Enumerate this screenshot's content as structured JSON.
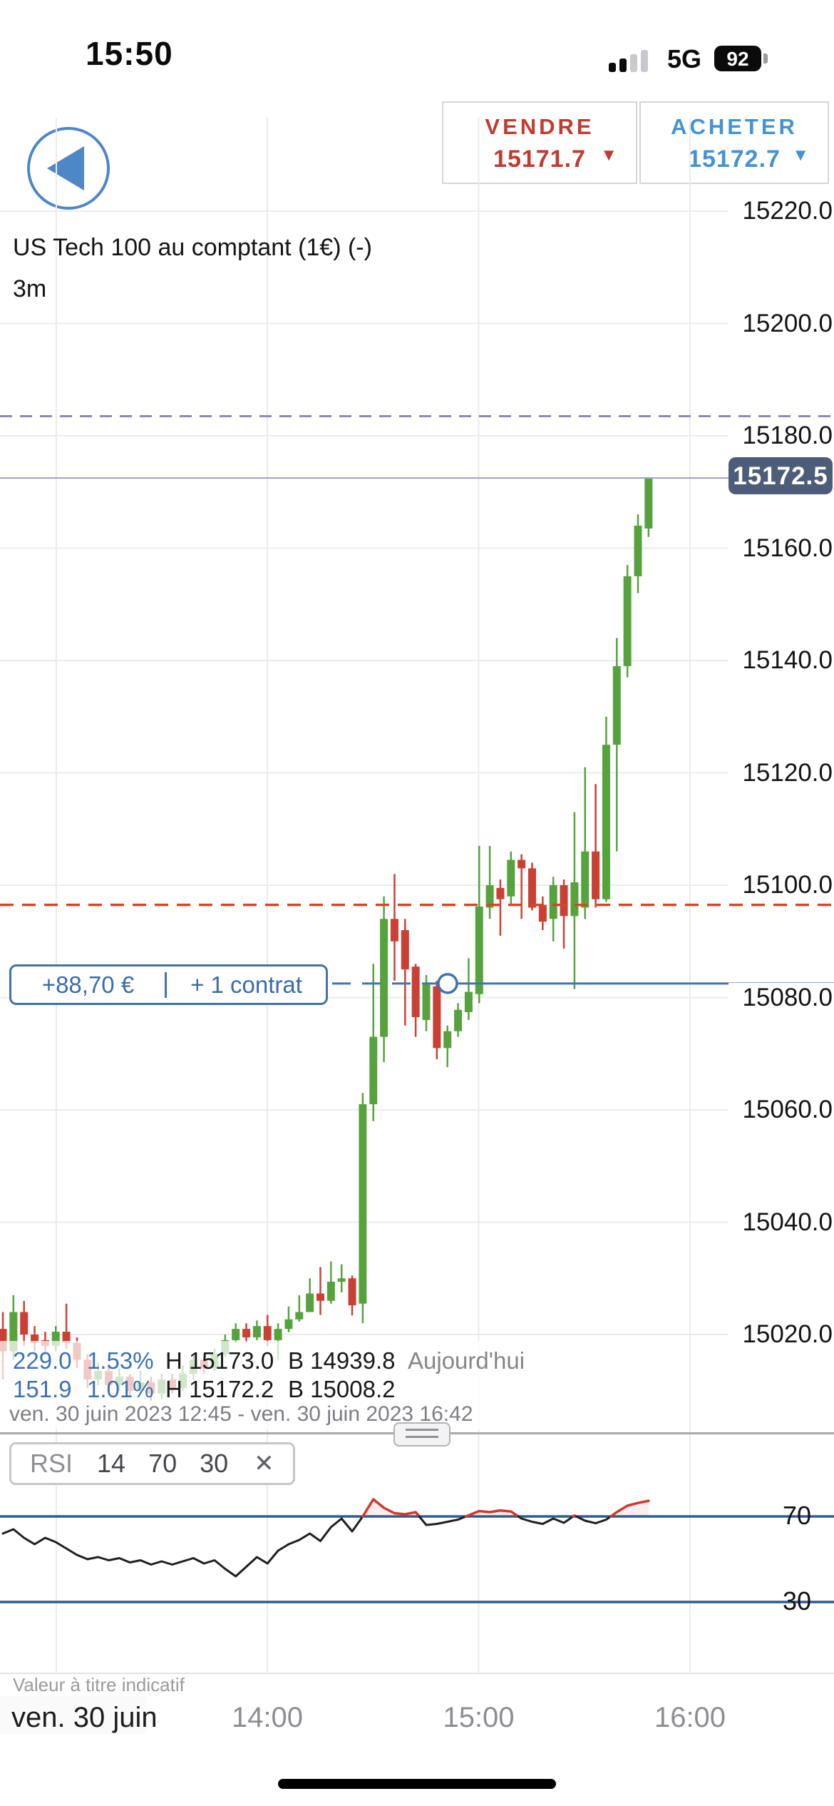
{
  "status_bar": {
    "time": "15:50",
    "network": "5G",
    "battery": "92"
  },
  "header": {
    "sell": {
      "label": "VENDRE",
      "price": "15171.7",
      "caret": "▼"
    },
    "buy": {
      "label": "ACHETER",
      "price": "15172.7",
      "caret": "▼"
    }
  },
  "chart": {
    "title": "US Tech 100 au comptant (1€) (-)",
    "timeframe": "3m",
    "price_tag": "15172.5",
    "position_pill": {
      "pnl": "+88,70 €",
      "separator": "|",
      "contracts": "+ 1 contrat"
    },
    "stats": {
      "row1": {
        "change": "229.0",
        "change_pct": "1.53%",
        "high": "H 15173.0",
        "low": "B 14939.8",
        "session": "Aujourd'hui"
      },
      "row2": {
        "change": "151.9",
        "change_pct": "1.01%",
        "high": "H 15172.2",
        "low": "B 15008.2"
      },
      "range": "ven. 30 juin 2023 12:45 - ven. 30 juin 2023 16:42"
    },
    "disclaimer": "Valeur à titre indicatif",
    "x_axis": {
      "day_label": "ven. 30 juin",
      "time_labels": [
        "14:00",
        "15:00",
        "16:00"
      ]
    },
    "y_axis_labels": [
      "15220.0",
      "15200.0",
      "15180.0",
      "15160.0",
      "15140.0",
      "15120.0",
      "15100.0",
      "15080.0",
      "15060.0",
      "15040.0",
      "15020.0"
    ]
  },
  "rsi_panel": {
    "badge": {
      "name": "RSI",
      "period": "14",
      "upper": "70",
      "lower": "30",
      "close_icon": "✕"
    },
    "upper_label": "70",
    "lower_label": "30"
  },
  "colors": {
    "candle_up": "#56a33e",
    "candle_down": "#cb4034",
    "gridline": "#ebebee",
    "resistance_dashed": "#8a88bd",
    "last_price_line": "#96a7bb",
    "last_price_tag_bg": "#4d5c78",
    "alert_dashed": "#d04a2a",
    "position_blue": "#3e74b0",
    "rsi_band": "#2d5c8f",
    "rsi_line": "#1f1f23",
    "rsi_overbought_line": "#d2382c",
    "sell_red": "#c23a30",
    "buy_blue": "#4493d3"
  },
  "chart_data": {
    "type": "candlestick+rsi",
    "instrument": "US Tech 100 au comptant (1€)",
    "interval": "3m",
    "visible_range": "ven. 30 juin 2023 12:45 - ven. 30 juin 2023 16:42",
    "first_candle_time": "12:45",
    "price_axis": {
      "min": 15008,
      "max": 15223,
      "gridline_step": 20,
      "gridlines": [
        15220,
        15200,
        15180,
        15160,
        15140,
        15120,
        15100,
        15080,
        15060,
        15040,
        15020
      ]
    },
    "levels": {
      "resistance_dashed": 15183.5,
      "last_price": 15172.5,
      "alert_dashed": 15096.5,
      "position_entry": 15082.5
    },
    "session": {
      "day_high": 15173.0,
      "day_low": 14939.8,
      "visible_high": 15172.2,
      "visible_low": 15008.2,
      "change_points": 229.0,
      "change_pct": 1.53
    },
    "candles": [
      [
        15021,
        15024,
        15012,
        15017
      ],
      [
        15017,
        15027,
        15015.5,
        15024
      ],
      [
        15024,
        15026,
        15018,
        15020
      ],
      [
        15020,
        15021.5,
        15017,
        15018.5
      ],
      [
        15019,
        15020.5,
        15016.5,
        15018
      ],
      [
        15018,
        15021.5,
        15017,
        15020.5
      ],
      [
        15020.5,
        15025.5,
        15017.5,
        15018.5
      ],
      [
        15018.5,
        15019.5,
        15014,
        15015.5
      ],
      [
        15015.5,
        15016.5,
        15010.5,
        15012
      ],
      [
        15012,
        15015,
        15011,
        15013.5
      ],
      [
        15013.5,
        15014.5,
        15010,
        15011
      ],
      [
        15011,
        15014,
        15010,
        15012.5
      ],
      [
        15012.5,
        15013,
        15009,
        15010
      ],
      [
        15010,
        15013.5,
        15009.5,
        15011.5
      ],
      [
        15011.5,
        15012.5,
        15008.2,
        15009.5
      ],
      [
        15009.5,
        15013,
        15008.5,
        15012
      ],
      [
        15012,
        15013,
        15009.5,
        15010.5
      ],
      [
        15010.5,
        15014.5,
        15010,
        15013
      ],
      [
        15013,
        15016.5,
        15012,
        15015.5
      ],
      [
        15015.5,
        15016.5,
        15013,
        15014
      ],
      [
        15014,
        15017.5,
        15013.5,
        15016.5
      ],
      [
        15016.5,
        15020,
        15016,
        15019
      ],
      [
        15019,
        15022,
        15018.5,
        15021
      ],
      [
        15021,
        15022,
        15018.5,
        15019.5
      ],
      [
        15019.5,
        15022.5,
        15019,
        15021.5
      ],
      [
        15021.5,
        15023.5,
        15018,
        15019
      ],
      [
        15019,
        15022,
        15015.5,
        15021
      ],
      [
        15021,
        15025,
        15020.4,
        15022.7
      ],
      [
        15022.7,
        15027,
        15022.3,
        15024
      ],
      [
        15024,
        15030,
        15024,
        15027.3
      ],
      [
        15027.3,
        15032,
        15023.5,
        15026
      ],
      [
        15026,
        15033,
        15025.5,
        15029.4
      ],
      [
        15029.4,
        15032.5,
        15027.5,
        15030
      ],
      [
        15030,
        15030.5,
        15023.4,
        15025.2
      ],
      [
        15025.5,
        15063,
        15022,
        15061
      ],
      [
        15061,
        15086,
        15058,
        15073
      ],
      [
        15073,
        15098,
        15068.5,
        15094
      ],
      [
        15094,
        15102,
        15083,
        15090
      ],
      [
        15092,
        15094,
        15075,
        15085
      ],
      [
        15085.5,
        15086,
        15073,
        15076.5
      ],
      [
        15076,
        15084,
        15074,
        15082.3
      ],
      [
        15082,
        15083,
        15069,
        15071
      ],
      [
        15071,
        15075,
        15067.6,
        15074
      ],
      [
        15074,
        15079,
        15073,
        15077.8
      ],
      [
        15077.4,
        15087,
        15076,
        15081
      ],
      [
        15080.6,
        15107,
        15079,
        15096.2
      ],
      [
        15096,
        15107,
        15094,
        15100
      ],
      [
        15099.5,
        15101,
        15091,
        15097.5
      ],
      [
        15098,
        15106,
        15096.5,
        15104.5
      ],
      [
        15104.5,
        15105.5,
        15094,
        15103
      ],
      [
        15103,
        15104,
        15095.5,
        15096
      ],
      [
        15096.5,
        15098,
        15092,
        15093.5
      ],
      [
        15094,
        15101.5,
        15090,
        15100
      ],
      [
        15100,
        15101,
        15088.7,
        15094.5
      ],
      [
        15094.5,
        15113,
        15081.5,
        15100.5
      ],
      [
        15096,
        15121,
        15094,
        15106
      ],
      [
        15106,
        15118,
        15096,
        15097.5
      ],
      [
        15097.5,
        15130,
        15097,
        15125
      ],
      [
        15125,
        15144,
        15106,
        15139
      ],
      [
        15139,
        15157,
        15137,
        15155
      ],
      [
        15155,
        15166,
        15152,
        15164
      ],
      [
        15163.5,
        15172.5,
        15162,
        15172.5
      ]
    ],
    "rsi": {
      "period": 14,
      "overbought": 70,
      "oversold": 30,
      "values": [
        62,
        64,
        60,
        57,
        60,
        58,
        55,
        52,
        50,
        51,
        49.5,
        50.5,
        48.5,
        49.5,
        47.5,
        49,
        47.5,
        49,
        50.5,
        48,
        49.5,
        45.5,
        42,
        46.5,
        51,
        48,
        54,
        57,
        59,
        62,
        58.5,
        65,
        69,
        63,
        70,
        78,
        74,
        71.5,
        71,
        72,
        66,
        66.5,
        67.5,
        68.5,
        70.5,
        72.5,
        72,
        72.8,
        72.3,
        69,
        67.5,
        66.5,
        69,
        67,
        70.4,
        68,
        66.8,
        68.5,
        72,
        75,
        76.3,
        77.3
      ]
    }
  }
}
